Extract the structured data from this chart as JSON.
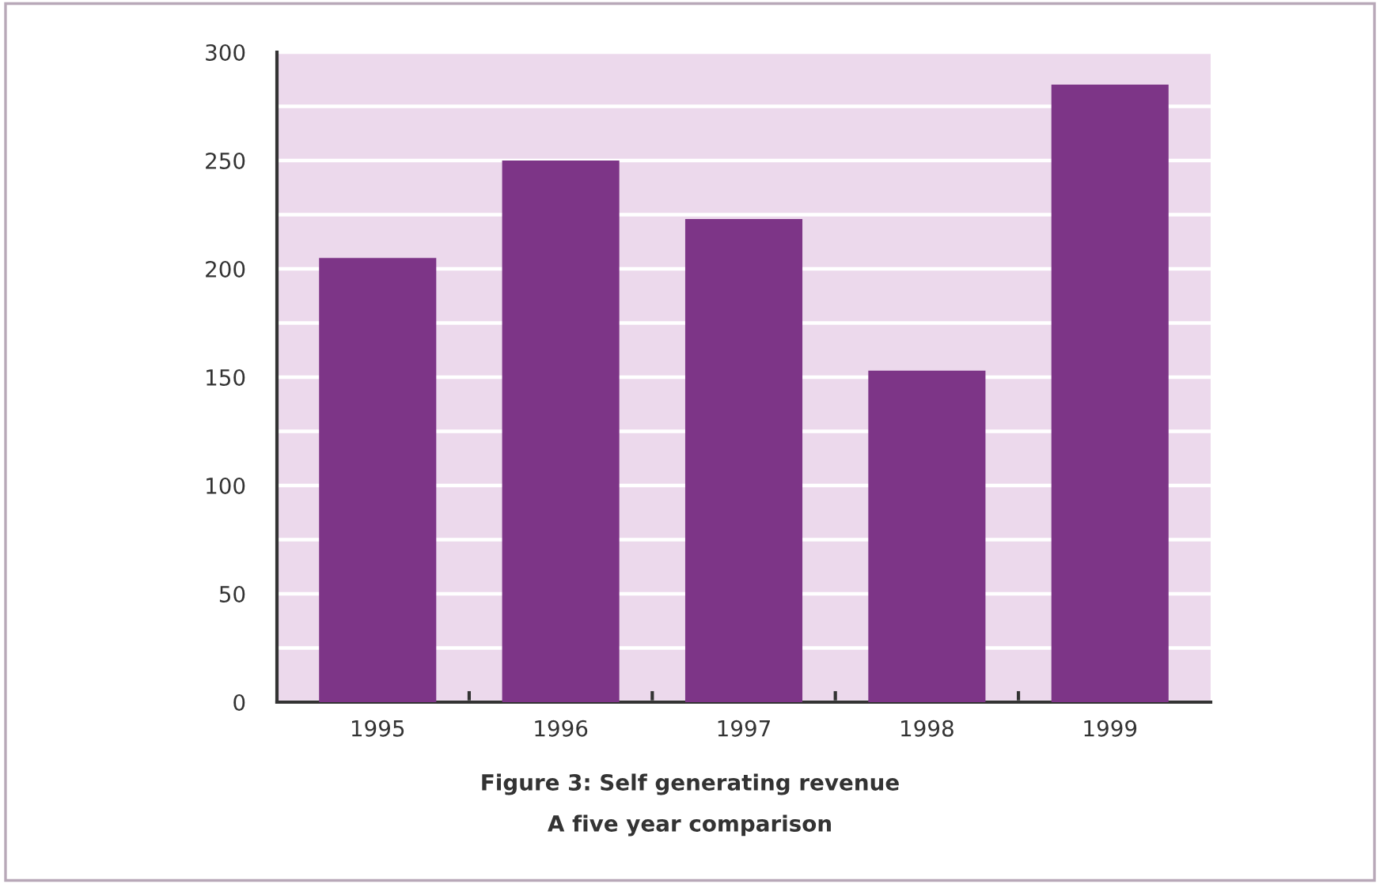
{
  "chart_data": {
    "type": "bar",
    "title": "Figure 3: Self generating revenue",
    "subtitle": "A five year comparison",
    "categories": [
      "1995",
      "1996",
      "1997",
      "1998",
      "1999"
    ],
    "values": [
      205,
      250,
      223,
      153,
      285
    ],
    "color": "#7d3587",
    "ylim": [
      0,
      300
    ],
    "yticks": [
      0,
      {
        "value": 25,
        "label": null
      },
      50,
      {
        "value": 75,
        "label": null
      },
      100,
      {
        "value": 125,
        "label": null
      },
      150,
      {
        "value": 175,
        "label": null
      },
      200,
      {
        "value": 225,
        "label": null
      },
      250,
      {
        "value": 275,
        "label": null
      },
      300
    ],
    "grid": "y",
    "legend": false
  }
}
